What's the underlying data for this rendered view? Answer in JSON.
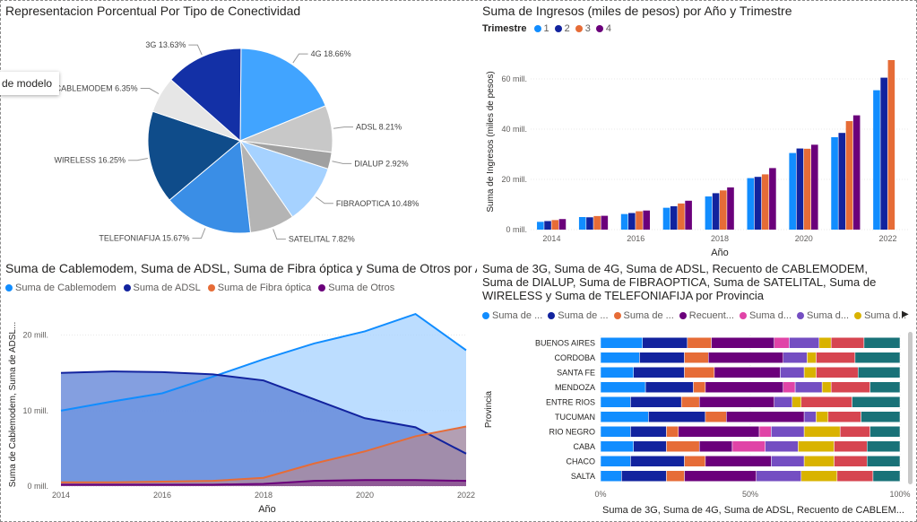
{
  "tooltip": "de modelo",
  "pie": {
    "title": "Representacion Porcentual Por Tipo de Conectividad",
    "chart_data": {
      "type": "pie",
      "slices": [
        {
          "label": "4G",
          "value": 18.66,
          "pct": "18.66%",
          "color": "#41A4FF"
        },
        {
          "label": "ADSL",
          "value": 8.21,
          "pct": "8.21%",
          "color": "#C8C8C8"
        },
        {
          "label": "DIALUP",
          "value": 2.92,
          "pct": "2.92%",
          "color": "#A0A0A0"
        },
        {
          "label": "FIBRAOPTICA",
          "value": 10.48,
          "pct": "10.48%",
          "color": "#A6D2FF"
        },
        {
          "label": "SATELITAL",
          "value": 7.82,
          "pct": "7.82%",
          "color": "#B4B4B4"
        },
        {
          "label": "TELEFONIAFIJA",
          "value": 15.67,
          "pct": "15.67%",
          "color": "#3A8EE6"
        },
        {
          "label": "WIRELESS",
          "value": 16.25,
          "pct": "16.25%",
          "color": "#0F4C8A"
        },
        {
          "label": "CABLEMODEM",
          "value": 6.35,
          "pct": "6.35%",
          "color": "#E6E6E6"
        },
        {
          "label": "3G",
          "value": 13.63,
          "pct": "13.63%",
          "color": "#1330A6"
        }
      ]
    }
  },
  "bar": {
    "title": "Suma de Ingresos (miles de pesos) por Año y Trimestre",
    "legend_title": "Trimestre",
    "chart_data": {
      "type": "bar",
      "xlabel": "Año",
      "ylabel": "Suma de Ingresos (miles de pesos)",
      "ylim": [
        0,
        70
      ],
      "yticks": [
        "0 mill.",
        "20 mill.",
        "40 mill.",
        "60 mill."
      ],
      "categories": [
        "2014",
        "2015",
        "2016",
        "2017",
        "2018",
        "2019",
        "2020",
        "2021",
        "2022"
      ],
      "xtick_labels": [
        "2014",
        "2016",
        "2018",
        "2020",
        "2022"
      ],
      "series": [
        {
          "name": "1",
          "color": "#118DFF",
          "values": [
            3.1,
            5,
            6.2,
            8.7,
            13.2,
            20.5,
            30.5,
            36.8,
            55.5
          ]
        },
        {
          "name": "2",
          "color": "#12239E",
          "values": [
            3.4,
            4.9,
            6.6,
            9.3,
            14.5,
            21,
            32.3,
            38.5,
            60.5
          ]
        },
        {
          "name": "3",
          "color": "#E66C37",
          "values": [
            3.8,
            5.4,
            7.3,
            10.4,
            15.6,
            22,
            32.2,
            43.2,
            67.5
          ]
        },
        {
          "name": "4",
          "color": "#6B007B",
          "values": [
            4.2,
            5.5,
            7.6,
            11.5,
            16.8,
            24.5,
            33.8,
            45.5,
            0
          ]
        }
      ],
      "colors": {
        "1": "#118DFF",
        "2": "#12239E",
        "3": "#E66C37",
        "4": "#6B007B"
      }
    }
  },
  "area": {
    "title": "Suma de Cablemodem, Suma de ADSL, Suma de Fibra óptica y Suma de Otros por Año",
    "chart_data": {
      "type": "area",
      "xlabel": "Año",
      "ylabel": "Suma de Cablemodem, Suma de ADSL...",
      "ylim": [
        0,
        24
      ],
      "yticks": [
        "0 mill.",
        "10 mill.",
        "20 mill."
      ],
      "x": [
        2014,
        2015,
        2016,
        2017,
        2018,
        2019,
        2020,
        2021,
        2022
      ],
      "xtick_labels": [
        "2014",
        "2016",
        "2018",
        "2020",
        "2022"
      ],
      "series": [
        {
          "name": "Suma de Cablemodem",
          "color": "#118DFF",
          "fill": "#A6D2FF",
          "values": [
            10,
            11.2,
            12.3,
            14.5,
            16.8,
            18.9,
            20.5,
            22.8,
            18
          ]
        },
        {
          "name": "Suma de ADSL",
          "color": "#12239E",
          "fill": "#5B7FD6",
          "values": [
            15,
            15.2,
            15.1,
            14.8,
            14,
            11.5,
            9,
            7.8,
            4.3
          ]
        },
        {
          "name": "Suma de Fibra óptica",
          "color": "#E66C37",
          "fill": "#B08A9A",
          "values": [
            0.5,
            0.5,
            0.6,
            0.7,
            1.1,
            3,
            4.6,
            6.6,
            7.9
          ]
        },
        {
          "name": "Suma de Otros",
          "color": "#6B007B",
          "fill": "#8A4A8F",
          "values": [
            0.2,
            0.2,
            0.2,
            0.2,
            0.3,
            0.7,
            0.8,
            0.8,
            0.7
          ]
        }
      ]
    }
  },
  "stacked": {
    "title": "Suma de 3G, Suma de 4G, Suma de ADSL, Recuento de CABLEMODEM, Suma de DIALUP, Suma de FIBRAOPTICA, Suma de SATELITAL, Suma de WIRELESS y Suma de TELEFONIAFIJA por Provincia",
    "legend_items": [
      {
        "label": "Suma de ...",
        "color": "#118DFF"
      },
      {
        "label": "Suma de ...",
        "color": "#12239E"
      },
      {
        "label": "Suma de ...",
        "color": "#E66C37"
      },
      {
        "label": "Recuent...",
        "color": "#6B007B"
      },
      {
        "label": "Suma d...",
        "color": "#E044A7"
      },
      {
        "label": "Suma d...",
        "color": "#744EC2"
      },
      {
        "label": "Suma d...",
        "color": "#D9B300"
      }
    ],
    "chart_data": {
      "type": "bar",
      "orientation": "horizontal-stacked-100",
      "ylabel": "Provincia",
      "xlabel": "Suma de 3G, Suma de 4G, Suma de ADSL, Recuento de CABLEM...",
      "xticks": [
        "0%",
        "50%",
        "100%"
      ],
      "categories": [
        "BUENOS AIRES",
        "CORDOBA",
        "SANTA FE",
        "MENDOZA",
        "ENTRE RIOS",
        "TUCUMAN",
        "RIO NEGRO",
        "CABA",
        "CHACO",
        "SALTA"
      ],
      "segment_colors": [
        "#118DFF",
        "#12239E",
        "#E66C37",
        "#6B007B",
        "#E044A7",
        "#744EC2",
        "#D9B300",
        "#D64550",
        "#197278"
      ],
      "rows": [
        [
          14,
          15,
          8,
          21,
          5,
          10,
          4,
          11,
          12
        ],
        [
          13,
          15,
          8,
          25,
          0,
          8,
          3,
          13,
          15
        ],
        [
          11,
          17,
          10,
          22,
          0,
          8,
          4,
          14,
          14
        ],
        [
          15,
          16,
          4,
          26,
          4,
          9,
          3,
          13,
          10
        ],
        [
          10,
          17,
          6,
          25,
          0,
          6,
          3,
          17,
          16
        ],
        [
          16,
          19,
          7,
          26,
          0,
          4,
          4,
          11,
          13
        ],
        [
          10,
          12,
          4,
          27,
          4,
          11,
          12,
          10,
          10
        ],
        [
          11,
          11,
          11,
          11,
          11,
          11,
          12,
          11,
          11
        ],
        [
          10,
          18,
          7,
          22,
          0,
          11,
          10,
          11,
          11
        ],
        [
          7,
          15,
          6,
          24,
          0,
          15,
          12,
          12,
          9
        ]
      ]
    }
  }
}
